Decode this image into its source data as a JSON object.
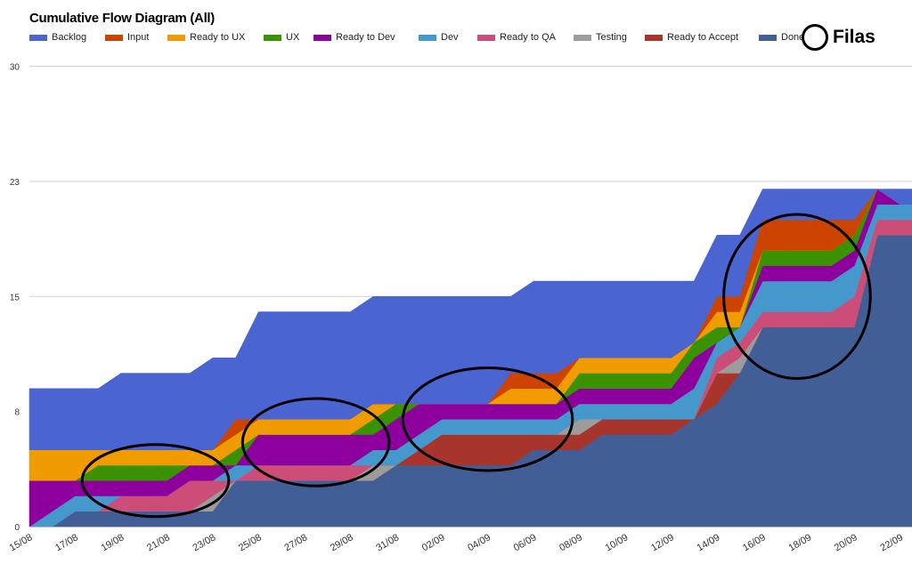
{
  "chart_data": {
    "type": "area",
    "stacked": true,
    "title": "Cumulative Flow Diagram (All)",
    "xlabel": "",
    "ylabel": "",
    "ylim": [
      0,
      30
    ],
    "y_ticks": [
      "0",
      "8",
      "15",
      "23",
      "30"
    ],
    "y_tick_values": [
      0,
      7.5,
      15,
      22.5,
      30
    ],
    "grid": true,
    "legend_position": "top",
    "categories": [
      "15/08",
      "16/08",
      "17/08",
      "18/08",
      "19/08",
      "20/08",
      "21/08",
      "22/08",
      "23/08",
      "24/08",
      "25/08",
      "26/08",
      "27/08",
      "28/08",
      "29/08",
      "30/08",
      "31/08",
      "01/09",
      "02/09",
      "03/09",
      "04/09",
      "05/09",
      "06/09",
      "07/09",
      "08/09",
      "09/09",
      "10/09",
      "11/09",
      "12/09",
      "13/09",
      "14/09",
      "15/09",
      "16/09",
      "17/09",
      "18/09",
      "19/09",
      "20/09",
      "21/09",
      "22/09"
    ],
    "x_tick_labels": [
      "15/08",
      "17/08",
      "19/08",
      "21/08",
      "23/08",
      "25/08",
      "27/08",
      "29/08",
      "31/08",
      "02/09",
      "04/09",
      "06/09",
      "08/09",
      "10/09",
      "12/09",
      "14/09",
      "16/09",
      "18/09",
      "20/09",
      "22/09"
    ],
    "series": [
      {
        "name": "Done",
        "color": "#415e96",
        "values": [
          0,
          0,
          1,
          1,
          1,
          1,
          1,
          1,
          1,
          3,
          3,
          3,
          3,
          3,
          3,
          3,
          4,
          4,
          4,
          4,
          4,
          4,
          5,
          5,
          5,
          6,
          6,
          6,
          6,
          7,
          8,
          10,
          13,
          13,
          13,
          13,
          13,
          19,
          19
        ]
      },
      {
        "name": "Ready to Accept",
        "color": "#a8352b",
        "values": [
          0,
          0,
          0,
          0,
          0,
          0,
          0,
          0,
          0,
          0,
          0,
          0,
          0,
          0,
          0,
          0,
          0,
          1,
          2,
          2,
          2,
          2,
          1,
          1,
          1,
          1,
          1,
          1,
          1,
          0,
          2,
          0,
          0,
          0,
          0,
          0,
          0,
          0,
          0
        ]
      },
      {
        "name": "Testing",
        "color": "#9c9c9c",
        "values": [
          0,
          0,
          0,
          0,
          0,
          0,
          0,
          0,
          1,
          0,
          0,
          0,
          0,
          0,
          0,
          1,
          0,
          0,
          0,
          0,
          0,
          0,
          0,
          0,
          1,
          0,
          0,
          0,
          0,
          0,
          0,
          1,
          0,
          0,
          0,
          0,
          0,
          0,
          0
        ]
      },
      {
        "name": "Ready to QA",
        "color": "#cc4e78",
        "values": [
          0,
          0,
          0,
          0,
          1,
          1,
          1,
          2,
          1,
          0,
          1,
          1,
          1,
          1,
          1,
          0,
          0,
          0,
          0,
          0,
          0,
          0,
          0,
          0,
          0,
          0,
          0,
          0,
          0,
          0,
          1,
          1,
          1,
          1,
          1,
          1,
          2,
          1,
          1
        ]
      },
      {
        "name": "Dev",
        "color": "#4598cc",
        "values": [
          0,
          1,
          1,
          1,
          0,
          0,
          0,
          0,
          0,
          1,
          0,
          0,
          0,
          0,
          0,
          1,
          1,
          1,
          1,
          1,
          1,
          1,
          1,
          1,
          1,
          1,
          1,
          1,
          1,
          2,
          1,
          1,
          2,
          2,
          2,
          2,
          2,
          1,
          1
        ]
      },
      {
        "name": "Ready to Dev",
        "color": "#8e009e",
        "values": [
          3,
          2,
          1,
          1,
          1,
          1,
          1,
          1,
          1,
          0,
          2,
          2,
          2,
          2,
          2,
          1,
          2,
          2,
          1,
          1,
          1,
          1,
          1,
          1,
          1,
          1,
          1,
          1,
          1,
          2,
          0,
          0,
          1,
          1,
          1,
          1,
          1,
          1,
          0
        ]
      },
      {
        "name": "UX",
        "color": "#3a9200",
        "values": [
          0,
          0,
          0,
          1,
          1,
          1,
          1,
          0,
          0,
          1,
          0,
          0,
          0,
          0,
          0,
          1,
          1,
          0,
          0,
          0,
          0,
          0,
          0,
          0,
          1,
          1,
          1,
          1,
          1,
          1,
          1,
          0,
          1,
          1,
          1,
          1,
          1,
          0,
          0
        ]
      },
      {
        "name": "Ready to UX",
        "color": "#f09c00",
        "values": [
          2,
          2,
          2,
          1,
          1,
          1,
          1,
          1,
          1,
          1,
          1,
          1,
          1,
          1,
          1,
          1,
          0,
          0,
          0,
          0,
          0,
          1,
          1,
          1,
          1,
          1,
          1,
          1,
          1,
          0,
          1,
          1,
          0,
          0,
          0,
          0,
          0,
          0,
          0
        ]
      },
      {
        "name": "Input",
        "color": "#cc4400",
        "values": [
          0,
          0,
          0,
          0,
          0,
          0,
          0,
          0,
          0,
          1,
          0,
          0,
          0,
          0,
          0,
          0,
          0,
          0,
          0,
          0,
          0,
          1,
          1,
          1,
          0,
          0,
          0,
          0,
          0,
          0,
          1,
          1,
          2,
          2,
          2,
          2,
          1,
          0,
          0
        ]
      },
      {
        "name": "Backlog",
        "color": "#4a64d2",
        "values": [
          4,
          4,
          4,
          4,
          5,
          5,
          5,
          5,
          6,
          4,
          7,
          7,
          7,
          7,
          7,
          7,
          7,
          7,
          7,
          7,
          7,
          5,
          6,
          6,
          5,
          5,
          5,
          5,
          5,
          4,
          4,
          4,
          2,
          2,
          2,
          2,
          2,
          0,
          1
        ]
      }
    ],
    "legend_order": [
      "Backlog",
      "Input",
      "Ready to UX",
      "UX",
      "Ready to Dev",
      "Dev",
      "Ready to QA",
      "Testing",
      "Ready to Accept",
      "Done"
    ],
    "annotations": {
      "legend_label": "Filas",
      "marker": "hand-drawn black ellipses",
      "highlighted_ranges": [
        [
          "18/08",
          "23/08"
        ],
        [
          "25/08",
          "30/08"
        ],
        [
          "01/09",
          "07/09"
        ],
        [
          "15/09",
          "20/09"
        ]
      ]
    }
  }
}
